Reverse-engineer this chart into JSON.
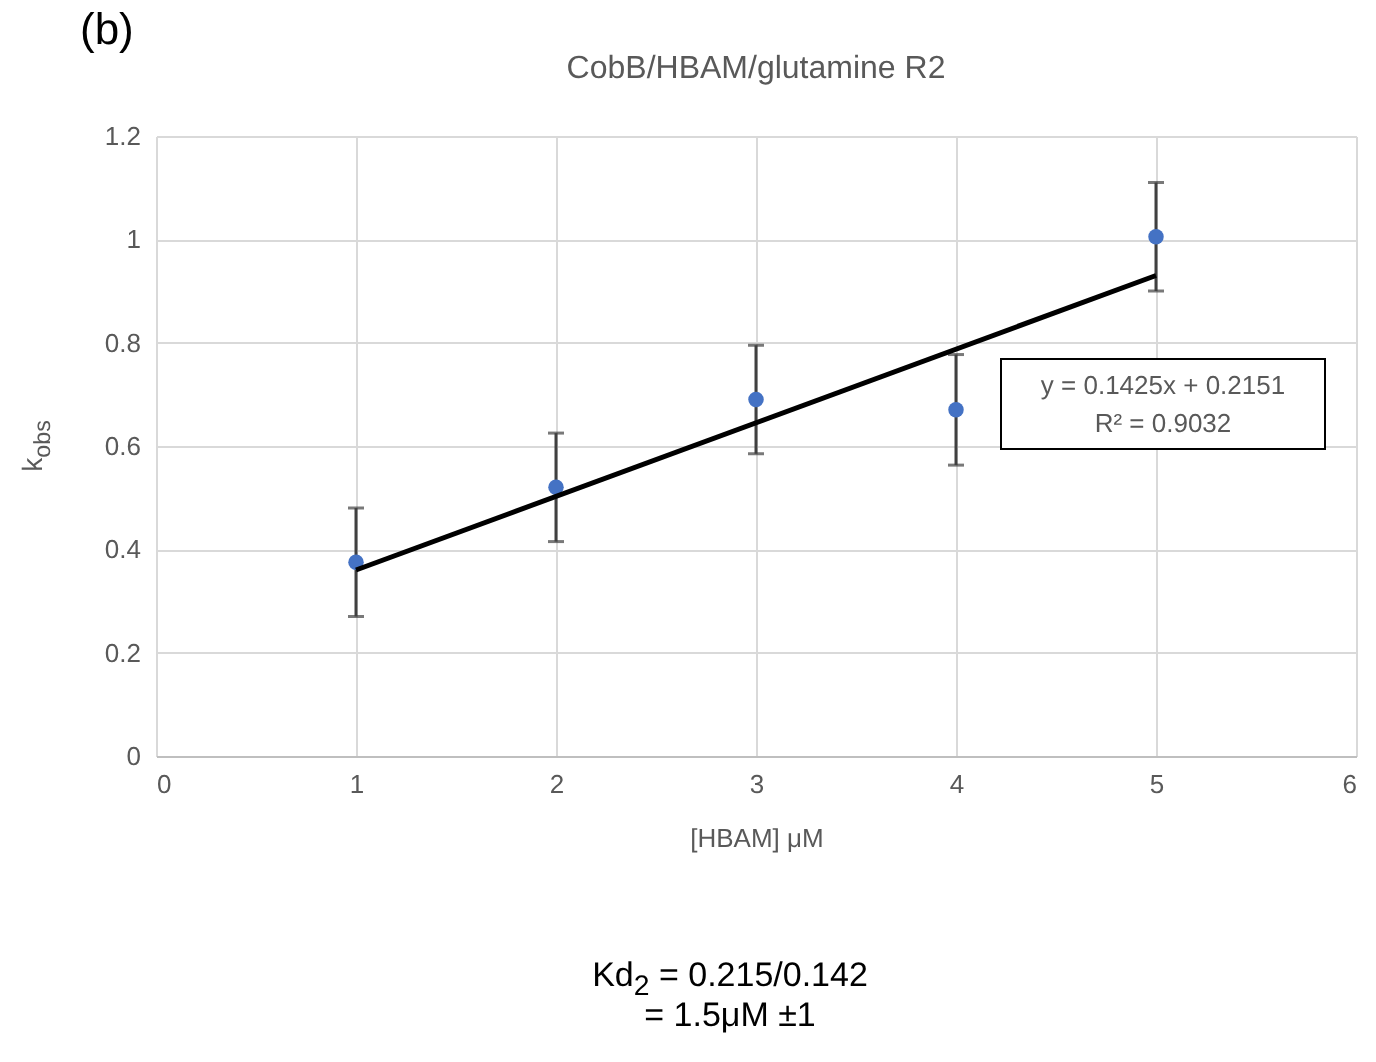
{
  "chart_data": {
    "type": "scatter",
    "title": "CobB/HBAM/glutamine R2",
    "xlabel": "[HBAM] μM",
    "ylabel": "k$_{obs}$",
    "x": [
      1,
      2,
      3,
      4,
      5
    ],
    "series": [
      {
        "marker": "circle",
        "color": "#4472c4",
        "values": [
          0.375,
          0.52,
          0.69,
          0.67,
          1.005
        ],
        "errors": [
          0.105,
          0.105,
          0.105,
          0.107,
          0.105
        ]
      },
      {
        "type": "line",
        "color": "#000000",
        "x": [
          1,
          5
        ],
        "values": [
          0.36,
          0.93
        ]
      }
    ],
    "xlim": [
      0,
      6
    ],
    "xticks": [
      0,
      1,
      2,
      3,
      4,
      5,
      6
    ],
    "ylim": [
      0,
      1.2
    ],
    "yticks": [
      0,
      0.2,
      0.4,
      0.6,
      0.8,
      1,
      1.2
    ],
    "grid": true,
    "annotations": [
      "(b)",
      "y = 0.1425x + 0.2151",
      "R² = 0.9032",
      "Kd$_{2}$ = 0.215/0.142",
      "= 1.5μM ±1"
    ]
  }
}
